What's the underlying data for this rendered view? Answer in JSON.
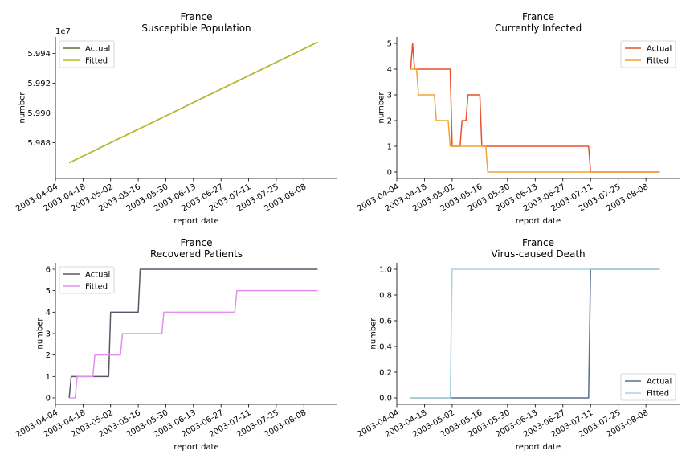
{
  "figure": {
    "xlabel": "report date",
    "ylabel": "number"
  },
  "chart_data": [
    {
      "type": "line",
      "title": "France",
      "subtitle": "Susceptible Population",
      "xlabel": "report date",
      "ylabel": "number",
      "y_offset_label": "1e7",
      "x_ticks": [
        "2003-04-04",
        "2003-04-18",
        "2003-05-02",
        "2003-05-16",
        "2003-05-30",
        "2003-06-13",
        "2003-06-27",
        "2003-07-11",
        "2003-07-25",
        "2003-08-08"
      ],
      "y_ticks": [
        "5.988",
        "5.990",
        "5.992",
        "5.994"
      ],
      "ylim": [
        59856000,
        59951000
      ],
      "legend": "top-left",
      "series": [
        {
          "name": "Actual",
          "color": "#5a6e3c",
          "points": [
            [
              "2003-04-11",
              59866500
            ],
            [
              "2003-08-15",
              59947500
            ]
          ]
        },
        {
          "name": "Fitted",
          "color": "#bcbd22",
          "points": [
            [
              "2003-04-11",
              59866500
            ],
            [
              "2003-08-15",
              59947500
            ]
          ]
        }
      ]
    },
    {
      "type": "line",
      "title": "France",
      "subtitle": "Currently Infected",
      "xlabel": "report date",
      "ylabel": "number",
      "x_ticks": [
        "2003-04-04",
        "2003-04-18",
        "2003-05-02",
        "2003-05-16",
        "2003-05-30",
        "2003-06-13",
        "2003-06-27",
        "2003-07-11",
        "2003-07-25",
        "2003-08-08"
      ],
      "y_ticks": [
        "0",
        "1",
        "2",
        "3",
        "4",
        "5"
      ],
      "ylim": [
        -0.25,
        5.25
      ],
      "legend": "top-right",
      "series": [
        {
          "name": "Actual",
          "color": "#e8502e",
          "points": [
            [
              "2003-04-11",
              4
            ],
            [
              "2003-04-12",
              5
            ],
            [
              "2003-04-13",
              4
            ],
            [
              "2003-05-01",
              4
            ],
            [
              "2003-05-02",
              1
            ],
            [
              "2003-05-06",
              1
            ],
            [
              "2003-05-07",
              2
            ],
            [
              "2003-05-09",
              2
            ],
            [
              "2003-05-10",
              3
            ],
            [
              "2003-05-16",
              3
            ],
            [
              "2003-05-17",
              1
            ],
            [
              "2003-07-10",
              1
            ],
            [
              "2003-07-11",
              0
            ],
            [
              "2003-08-15",
              0
            ]
          ]
        },
        {
          "name": "Fitted",
          "color": "#f2a431",
          "points": [
            [
              "2003-04-11",
              4
            ],
            [
              "2003-04-14",
              4
            ],
            [
              "2003-04-15",
              3
            ],
            [
              "2003-04-23",
              3
            ],
            [
              "2003-04-24",
              2
            ],
            [
              "2003-04-30",
              2
            ],
            [
              "2003-05-01",
              1
            ],
            [
              "2003-05-19",
              1
            ],
            [
              "2003-05-20",
              0
            ],
            [
              "2003-08-15",
              0
            ]
          ]
        }
      ]
    },
    {
      "type": "line",
      "title": "France",
      "subtitle": "Recovered Patients",
      "xlabel": "report date",
      "ylabel": "number",
      "x_ticks": [
        "2003-04-04",
        "2003-04-18",
        "2003-05-02",
        "2003-05-16",
        "2003-05-30",
        "2003-06-13",
        "2003-06-27",
        "2003-07-11",
        "2003-07-25",
        "2003-08-08"
      ],
      "y_ticks": [
        "0",
        "1",
        "2",
        "3",
        "4",
        "5",
        "6"
      ],
      "ylim": [
        -0.3,
        6.3
      ],
      "legend": "top-left",
      "series": [
        {
          "name": "Actual",
          "color": "#5b5668",
          "points": [
            [
              "2003-04-11",
              0
            ],
            [
              "2003-04-12",
              1
            ],
            [
              "2003-05-01",
              1
            ],
            [
              "2003-05-02",
              4
            ],
            [
              "2003-05-16",
              4
            ],
            [
              "2003-05-17",
              6
            ],
            [
              "2003-08-15",
              6
            ]
          ]
        },
        {
          "name": "Fitted",
          "color": "#e38ff0",
          "points": [
            [
              "2003-04-11",
              0
            ],
            [
              "2003-04-14",
              0
            ],
            [
              "2003-04-15",
              1
            ],
            [
              "2003-04-23",
              1
            ],
            [
              "2003-04-24",
              2
            ],
            [
              "2003-05-07",
              2
            ],
            [
              "2003-05-08",
              3
            ],
            [
              "2003-05-28",
              3
            ],
            [
              "2003-05-29",
              4
            ],
            [
              "2003-07-04",
              4
            ],
            [
              "2003-07-05",
              5
            ],
            [
              "2003-08-15",
              5
            ]
          ]
        }
      ]
    },
    {
      "type": "line",
      "title": "France",
      "subtitle": "Virus-caused Death",
      "xlabel": "report date",
      "ylabel": "number",
      "x_ticks": [
        "2003-04-04",
        "2003-04-18",
        "2003-05-02",
        "2003-05-16",
        "2003-05-30",
        "2003-06-13",
        "2003-06-27",
        "2003-07-11",
        "2003-07-25",
        "2003-08-08"
      ],
      "y_ticks": [
        "0.0",
        "0.2",
        "0.4",
        "0.6",
        "0.8",
        "1.0"
      ],
      "ylim": [
        -0.05,
        1.05
      ],
      "legend": "bottom-right",
      "series": [
        {
          "name": "Actual",
          "color": "#5a6d8e",
          "points": [
            [
              "2003-04-11",
              0
            ],
            [
              "2003-07-10",
              0
            ],
            [
              "2003-07-11",
              1
            ],
            [
              "2003-08-15",
              1
            ]
          ]
        },
        {
          "name": "Fitted",
          "color": "#a9d3dd",
          "points": [
            [
              "2003-04-11",
              0
            ],
            [
              "2003-05-01",
              0
            ],
            [
              "2003-05-02",
              1
            ],
            [
              "2003-08-15",
              1
            ]
          ]
        }
      ]
    }
  ]
}
